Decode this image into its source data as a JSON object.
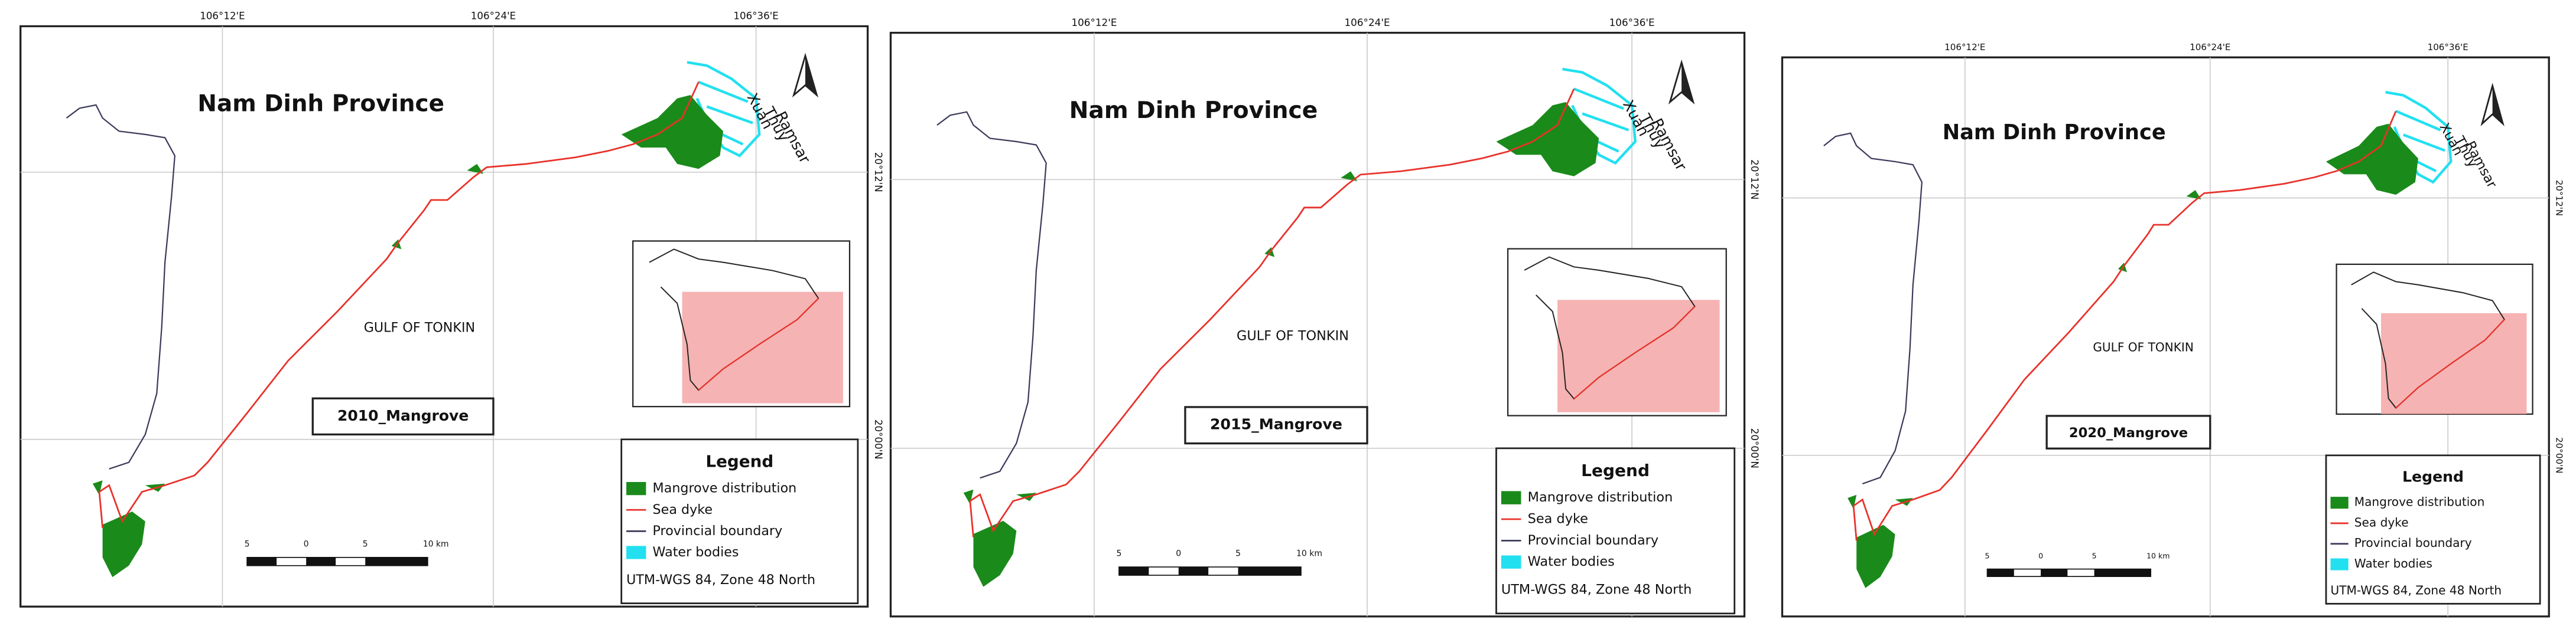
{
  "panels": [
    {
      "title": "Nam Dinh Province",
      "place_lines": [
        "Xuan",
        "Thuy",
        "Ramsar"
      ],
      "sea": "GULF OF TONKIN",
      "map_label": "2010_Mangrove",
      "lon_ticks": [
        "106°12'E",
        "106°24'E",
        "106°36'E"
      ],
      "lat_ticks": [
        "20°12'N",
        "20°00'N"
      ],
      "legend": {
        "title": "Legend",
        "items": [
          {
            "label": "Mangrove distribution",
            "color": "#1a8a1a",
            "symbol": "fill"
          },
          {
            "label": "Sea dyke",
            "color": "#e8322b",
            "symbol": "line"
          },
          {
            "label": "Provincial boundary",
            "color": "#3a3a5a",
            "symbol": "line"
          },
          {
            "label": "Water bodies",
            "color": "#22e0f0",
            "symbol": "fill"
          }
        ],
        "note": "UTM-WGS 84, Zone 48 North"
      },
      "scale_labels": [
        "5",
        "0",
        "5",
        "10 km"
      ]
    },
    {
      "title": "Nam Dinh Province",
      "place_lines": [
        "Xuan",
        "Thuy",
        "Ramsar"
      ],
      "sea": "GULF OF TONKIN",
      "map_label": "2015_Mangrove",
      "lon_ticks": [
        "106°12'E",
        "106°24'E",
        "106°36'E"
      ],
      "lat_ticks": [
        "20°12'N",
        "20°00'N"
      ],
      "legend": {
        "title": "Legend",
        "items": [
          {
            "label": "Mangrove distribution",
            "color": "#1a8a1a",
            "symbol": "fill"
          },
          {
            "label": "Sea dyke",
            "color": "#e8322b",
            "symbol": "line"
          },
          {
            "label": "Provincial boundary",
            "color": "#3a3a5a",
            "symbol": "line"
          },
          {
            "label": "Water bodies",
            "color": "#22e0f0",
            "symbol": "fill"
          }
        ],
        "note": "UTM-WGS 84, Zone 48 North"
      },
      "scale_labels": [
        "5",
        "0",
        "5",
        "10 km"
      ]
    },
    {
      "title": "Nam Dinh Province",
      "place_lines": [
        "Xuan",
        "Thuy",
        "Ramsar"
      ],
      "sea": "GULF OF TONKIN",
      "map_label": "2020_Mangrove",
      "lon_ticks": [
        "106°12'E",
        "106°24'E",
        "106°36'E"
      ],
      "lat_ticks": [
        "20°12'N",
        "20°00'N"
      ],
      "legend": {
        "title": "Legend",
        "items": [
          {
            "label": "Mangrove distribution",
            "color": "#1a8a1a",
            "symbol": "fill"
          },
          {
            "label": "Sea dyke",
            "color": "#e8322b",
            "symbol": "line"
          },
          {
            "label": "Provincial boundary",
            "color": "#3a3a5a",
            "symbol": "line"
          },
          {
            "label": "Water bodies",
            "color": "#22e0f0",
            "symbol": "fill"
          }
        ],
        "note": "UTM-WGS 84, Zone 48 North"
      },
      "scale_labels": [
        "5",
        "0",
        "5",
        "10 km"
      ]
    }
  ]
}
